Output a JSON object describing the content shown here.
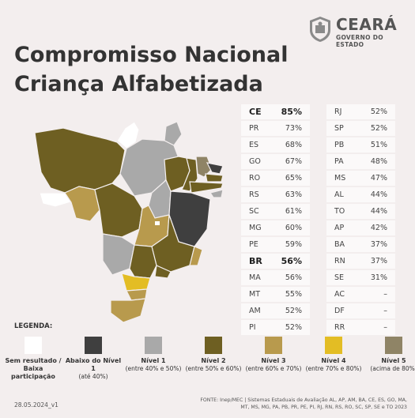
{
  "logo": {
    "brand": "CEARÁ",
    "subtitle": "GOVERNO DO ESTADO"
  },
  "title": {
    "line1": "Compromisso Nacional",
    "line2": "Criança Alfabetizada"
  },
  "table_left": [
    {
      "state": "CE",
      "value": "85%",
      "highlight": true
    },
    {
      "state": "PR",
      "value": "73%"
    },
    {
      "state": "ES",
      "value": "68%"
    },
    {
      "state": "GO",
      "value": "67%"
    },
    {
      "state": "RO",
      "value": "65%"
    },
    {
      "state": "RS",
      "value": "63%"
    },
    {
      "state": "SC",
      "value": "61%"
    },
    {
      "state": "MG",
      "value": "60%"
    },
    {
      "state": "PE",
      "value": "59%"
    },
    {
      "state": "BR",
      "value": "56%",
      "highlight": true
    },
    {
      "state": "MA",
      "value": "56%"
    },
    {
      "state": "MT",
      "value": "55%"
    },
    {
      "state": "AM",
      "value": "52%"
    },
    {
      "state": "PI",
      "value": "52%"
    }
  ],
  "table_right": [
    {
      "state": "RJ",
      "value": "52%"
    },
    {
      "state": "SP",
      "value": "52%"
    },
    {
      "state": "PB",
      "value": "51%"
    },
    {
      "state": "PA",
      "value": "48%"
    },
    {
      "state": "MS",
      "value": "47%"
    },
    {
      "state": "AL",
      "value": "44%"
    },
    {
      "state": "TO",
      "value": "44%"
    },
    {
      "state": "AP",
      "value": "42%"
    },
    {
      "state": "BA",
      "value": "37%"
    },
    {
      "state": "RN",
      "value": "37%"
    },
    {
      "state": "SE",
      "value": "31%"
    },
    {
      "state": "AC",
      "value": "–"
    },
    {
      "state": "DF",
      "value": "–"
    },
    {
      "state": "RR",
      "value": "–"
    }
  ],
  "legend": {
    "title": "LEGENDA:",
    "items": [
      {
        "name": "Sem resultado / Baixa participação",
        "desc": "",
        "color": "#ffffff"
      },
      {
        "name": "Abaixo do Nível 1",
        "desc": "(até 40%)",
        "color": "#3f3f3f"
      },
      {
        "name": "Nível 1",
        "desc": "(entre 40% e 50%)",
        "color": "#a9a9a9"
      },
      {
        "name": "Nível 2",
        "desc": "(entre 50% e 60%)",
        "color": "#6e5f22"
      },
      {
        "name": "Nível 3",
        "desc": "(entre 60% e 70%)",
        "color": "#b89a4d"
      },
      {
        "name": "Nível 4",
        "desc": "(entre 70% e 80%)",
        "color": "#e3bd24"
      },
      {
        "name": "Nível 5",
        "desc": "(acima de 80%)",
        "color": "#8f8466"
      }
    ]
  },
  "footer": {
    "date": "28.05.2024_v1",
    "source": "FONTE: Inep/MEC | Sistemas Estaduais de Avaliação AL, AP, AM, BA, CE, ES, GO, MA, MT, MS, MG, PA, PB, PR, PE, PI, RJ, RN, RS, RO, SC, SP, SE e TO 2023"
  }
}
